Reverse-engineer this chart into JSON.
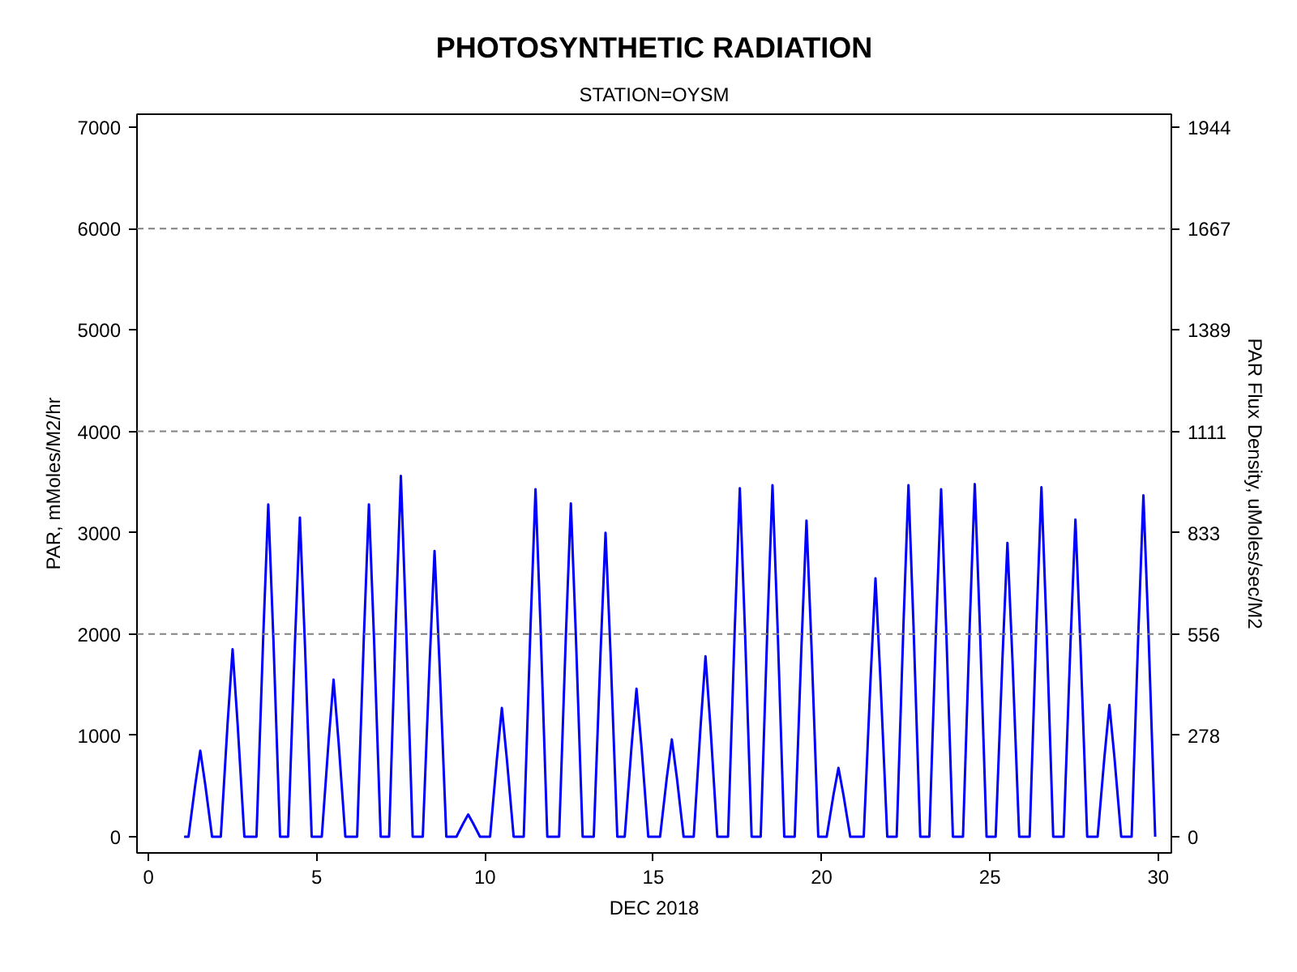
{
  "chart_data": {
    "type": "line",
    "title": "PHOTOSYNTHETIC RADIATION",
    "subtitle": "STATION=OYSM",
    "xlabel": "DEC 2018",
    "ylabel": "PAR, mMoles/M2/hr",
    "y2label": "PAR Flux Density, uMoles/sec/M2",
    "xlim": [
      -0.34,
      30.39
    ],
    "xticks": [
      0,
      5,
      10,
      15,
      20,
      25,
      30
    ],
    "ylim": [
      -160,
      7130
    ],
    "yticks": [
      0,
      1000,
      2000,
      3000,
      4000,
      5000,
      6000,
      7000
    ],
    "y2lim": [
      -44.4,
      1980.6
    ],
    "y2ticks": [
      {
        "value": 0,
        "label": "0"
      },
      {
        "value": 277.8,
        "label": "278"
      },
      {
        "value": 555.6,
        "label": "556"
      },
      {
        "value": 833.3,
        "label": "833"
      },
      {
        "value": 1111.1,
        "label": "1111"
      },
      {
        "value": 1388.9,
        "label": "1389"
      },
      {
        "value": 1666.7,
        "label": "1667"
      },
      {
        "value": 1944.4,
        "label": "1944"
      }
    ],
    "ref_lines": [
      {
        "axis": "y",
        "value": 2000,
        "color": "#808080",
        "line_style": "dashed"
      },
      {
        "axis": "y",
        "value": 4000,
        "color": "#808080",
        "line_style": "dashed"
      },
      {
        "axis": "y",
        "value": 6000,
        "color": "#808080",
        "line_style": "dashed"
      }
    ],
    "grid": false,
    "marker": "none",
    "line_style": "solid",
    "series": [
      {
        "color": "#0000ff",
        "x": [
          1.06,
          1.19,
          1.39,
          1.54,
          1.69,
          1.89,
          2.15,
          2.35,
          2.5,
          2.65,
          2.85,
          3.21,
          3.41,
          3.56,
          3.71,
          3.91,
          4.15,
          4.35,
          4.5,
          4.65,
          4.85,
          5.15,
          5.35,
          5.5,
          5.65,
          5.85,
          6.2,
          6.4,
          6.55,
          6.7,
          6.9,
          7.15,
          7.35,
          7.5,
          7.65,
          7.85,
          8.15,
          8.35,
          8.5,
          8.65,
          8.85,
          9.15,
          9.35,
          9.5,
          9.65,
          9.85,
          10.15,
          10.35,
          10.5,
          10.65,
          10.85,
          11.15,
          11.35,
          11.5,
          11.65,
          11.85,
          12.2,
          12.4,
          12.55,
          12.7,
          12.9,
          13.23,
          13.43,
          13.58,
          13.73,
          13.93,
          14.15,
          14.35,
          14.5,
          14.65,
          14.85,
          15.2,
          15.4,
          15.55,
          15.7,
          15.9,
          16.2,
          16.4,
          16.55,
          16.7,
          16.9,
          17.22,
          17.42,
          17.57,
          17.72,
          17.92,
          18.19,
          18.39,
          18.54,
          18.69,
          18.89,
          19.2,
          19.4,
          19.55,
          19.7,
          19.9,
          20.15,
          20.35,
          20.5,
          20.65,
          20.85,
          21.25,
          21.45,
          21.6,
          21.75,
          21.95,
          22.23,
          22.43,
          22.58,
          22.73,
          22.93,
          23.2,
          23.4,
          23.55,
          23.7,
          23.9,
          24.2,
          24.4,
          24.55,
          24.7,
          24.9,
          25.17,
          25.37,
          25.52,
          25.67,
          25.87,
          26.18,
          26.38,
          26.53,
          26.68,
          26.88,
          27.19,
          27.39,
          27.54,
          27.69,
          27.89,
          28.2,
          28.4,
          28.55,
          28.7,
          28.9,
          29.21,
          29.41,
          29.56,
          29.71,
          29.91
        ],
        "values": [
          0,
          0,
          510,
          850,
          510,
          0,
          0,
          1110,
          1850,
          1110,
          0,
          0,
          1970,
          3280,
          1970,
          0,
          0,
          1890,
          3150,
          1890,
          0,
          0,
          930,
          1550,
          930,
          0,
          0,
          1970,
          3280,
          1970,
          0,
          0,
          2140,
          3560,
          2140,
          0,
          0,
          1690,
          2820,
          1690,
          0,
          0,
          130,
          220,
          130,
          0,
          0,
          760,
          1270,
          760,
          0,
          0,
          2060,
          3430,
          2060,
          0,
          0,
          1970,
          3290,
          1970,
          0,
          0,
          1800,
          3000,
          1800,
          0,
          0,
          880,
          1460,
          880,
          0,
          0,
          580,
          960,
          580,
          0,
          0,
          1070,
          1780,
          1070,
          0,
          0,
          2060,
          3440,
          2060,
          0,
          0,
          2080,
          3470,
          2080,
          0,
          0,
          1870,
          3120,
          1870,
          0,
          0,
          410,
          680,
          410,
          0,
          0,
          1530,
          2550,
          1530,
          0,
          0,
          2080,
          3470,
          2080,
          0,
          0,
          2060,
          3430,
          2060,
          0,
          0,
          2090,
          3480,
          2090,
          0,
          0,
          1740,
          2900,
          1740,
          0,
          0,
          2070,
          3450,
          2070,
          0,
          0,
          1880,
          3130,
          1880,
          0,
          0,
          780,
          1300,
          780,
          0,
          0,
          2020,
          3370,
          2020,
          0
        ]
      }
    ]
  }
}
